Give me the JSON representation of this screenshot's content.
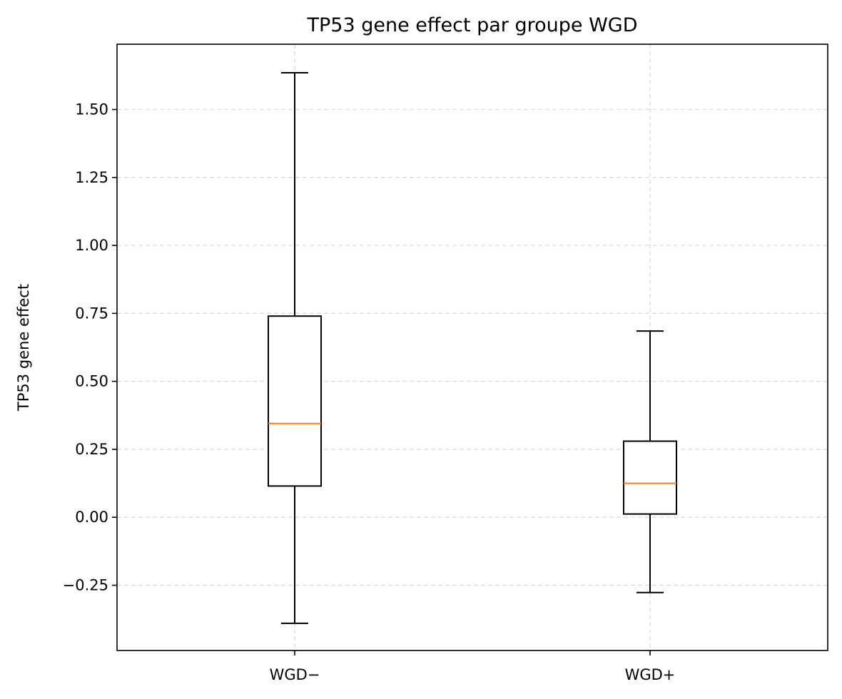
{
  "chart_data": {
    "type": "box",
    "title": "TP53 gene effect par groupe WGD",
    "xlabel": "",
    "ylabel": "TP53 gene effect",
    "categories": [
      "WGD−",
      "WGD+"
    ],
    "boxes": [
      {
        "category": "WGD−",
        "whisker_low": -0.39,
        "q1": 0.115,
        "median": 0.345,
        "q3": 0.74,
        "whisker_high": 1.635
      },
      {
        "category": "WGD+",
        "whisker_low": -0.277,
        "q1": 0.012,
        "median": 0.125,
        "q3": 0.28,
        "whisker_high": 0.685
      }
    ],
    "ylim": [
      -0.49,
      1.74
    ],
    "yticks": [
      -0.25,
      0.0,
      0.25,
      0.5,
      0.75,
      1.0,
      1.25,
      1.5
    ],
    "ytick_labels": [
      "−0.25",
      "0.00",
      "0.25",
      "0.50",
      "0.75",
      "1.00",
      "1.25",
      "1.50"
    ],
    "grid": true,
    "grid_style": "dashed",
    "colors": {
      "box": "#000000",
      "median": "#ff7f0e",
      "grid": "#dddddd"
    }
  }
}
